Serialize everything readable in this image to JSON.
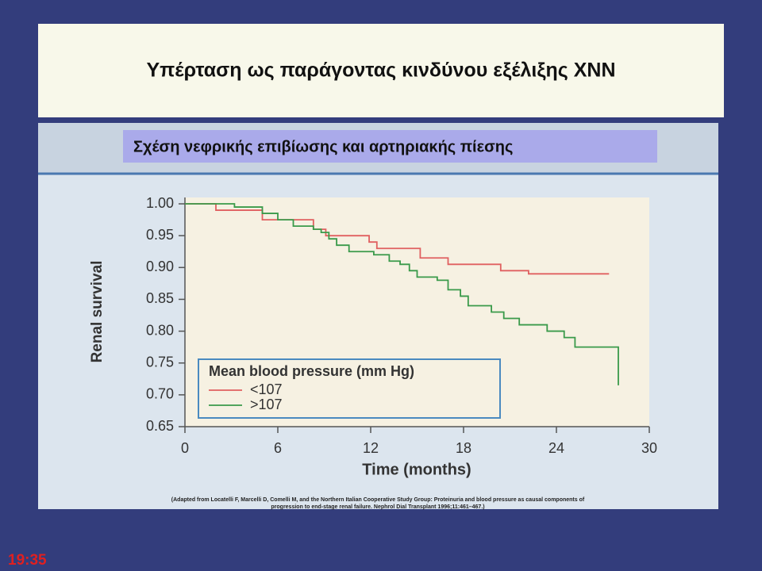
{
  "slide_title": "Υπέρταση ως παράγοντας κινδύνου εξέλιξης ΧΝΝ",
  "subtitle": "Σχέση νεφρικής επιβίωσης και αρτηριακής πίεσης",
  "citation": [
    "(Adapted from Locatelli F, Marcelli D, Comelli M, and the Northern Italian Cooperative Study Group: Proteinuria and blood pressure as causal components of",
    "progression to end-stage renal failure. Nephrol Dial Transplant 1996;11:461–467.)"
  ],
  "clock": "19:35",
  "chart_data": {
    "type": "step",
    "xlabel": "Time (months)",
    "ylabel": "Renal survival",
    "legend_title": "Mean blood pressure (mm Hg)",
    "xlim": [
      0,
      30
    ],
    "ylim": [
      0.65,
      1.01
    ],
    "xticks": [
      0,
      6,
      12,
      18,
      24,
      30
    ],
    "yticks": [
      {
        "value": 1.0,
        "label": "1.00"
      },
      0.95,
      {
        "value": 0.9,
        "label": "0.90"
      },
      0.85,
      {
        "value": 0.8,
        "label": "0.80"
      },
      0.75,
      {
        "value": 0.7,
        "label": "0.70"
      },
      0.65
    ],
    "series": [
      {
        "name": "<107",
        "color": "#e06060",
        "x": [
          0,
          2,
          5,
          8.3,
          9.1,
          11.9,
          12.4,
          15.2,
          17,
          20.4,
          22.2,
          27.4
        ],
        "values": [
          1.0,
          0.99,
          0.975,
          0.96,
          0.95,
          0.94,
          0.93,
          0.915,
          0.905,
          0.895,
          0.89,
          0.89
        ]
      },
      {
        "name": ">107",
        "color": "#3a9a4a",
        "x": [
          0,
          3.2,
          5,
          6,
          7,
          8.3,
          8.8,
          9.3,
          9.8,
          10.6,
          12.2,
          13.2,
          13.9,
          14.5,
          15,
          16.3,
          17,
          17.8,
          18.3,
          19.8,
          20.6,
          21.6,
          23.4,
          24.5,
          25.2,
          28,
          28
        ],
        "values": [
          1.0,
          0.995,
          0.985,
          0.975,
          0.965,
          0.96,
          0.955,
          0.945,
          0.935,
          0.925,
          0.92,
          0.91,
          0.905,
          0.895,
          0.885,
          0.88,
          0.865,
          0.855,
          0.84,
          0.83,
          0.82,
          0.81,
          0.8,
          0.79,
          0.775,
          0.775,
          0.715
        ]
      }
    ]
  }
}
